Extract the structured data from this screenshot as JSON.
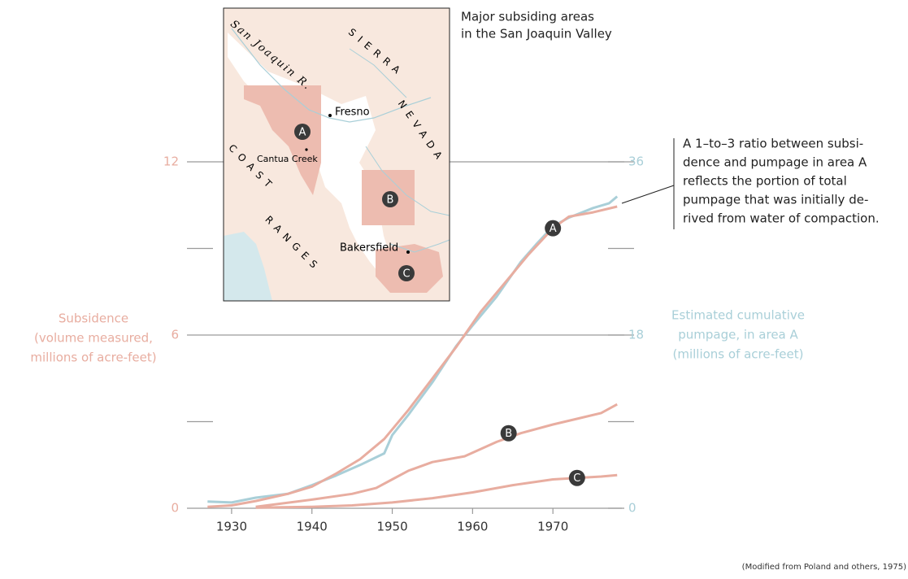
{
  "chart_data": {
    "type": "line",
    "ylim": [
      0,
      12
    ],
    "yticks": [
      0,
      6,
      12
    ],
    "minor_yticks": [
      3,
      9
    ],
    "y2lim": [
      0,
      36
    ],
    "y2ticks": [
      0,
      18,
      36
    ],
    "minor_y2ticks": [
      9,
      27
    ],
    "xlim": [
      1925,
      1980
    ],
    "xticks": [
      1930,
      1940,
      1950,
      1960,
      1970
    ],
    "y_label_lines": [
      "Subsidence",
      "(volume measured,",
      "millions of acre-feet)"
    ],
    "y2_label_lines": [
      "Estimated cumulative",
      "pumpage, in area A",
      "(millions of acre-feet)"
    ],
    "series": [
      {
        "axis": "y2",
        "color": "#a9cfd8",
        "x": [
          1927,
          1930,
          1933,
          1937,
          1940,
          1943,
          1946,
          1949,
          1950,
          1952,
          1955,
          1958,
          1960,
          1963,
          1966,
          1968,
          1970,
          1972,
          1975,
          1977,
          1978
        ],
        "values": [
          0.7,
          0.6,
          1.1,
          1.5,
          2.4,
          3.4,
          4.5,
          5.7,
          7.6,
          9.7,
          13.1,
          16.9,
          19,
          22,
          25.6,
          27.5,
          29.3,
          30.2,
          31.2,
          31.7,
          32.4
        ]
      },
      {
        "name": "A",
        "color": "#e8ada0",
        "x": [
          1927,
          1930,
          1933,
          1937,
          1940,
          1943,
          1946,
          1949,
          1952,
          1955,
          1958,
          1961,
          1964,
          1967,
          1970,
          1972,
          1975,
          1978
        ],
        "values": [
          0.05,
          0.1,
          0.25,
          0.5,
          0.75,
          1.2,
          1.7,
          2.4,
          3.4,
          4.5,
          5.6,
          6.8,
          7.8,
          8.8,
          9.7,
          10.1,
          10.25,
          10.45
        ]
      },
      {
        "name": "B",
        "color": "#e8ada0",
        "x": [
          1933,
          1940,
          1945,
          1948,
          1950,
          1952,
          1955,
          1959,
          1963,
          1966,
          1970,
          1973,
          1976,
          1978
        ],
        "values": [
          0.05,
          0.3,
          0.5,
          0.7,
          1.0,
          1.3,
          1.6,
          1.8,
          2.3,
          2.6,
          2.9,
          3.1,
          3.3,
          3.6
        ]
      },
      {
        "name": "C",
        "color": "#e8ada0",
        "x": [
          1933,
          1940,
          1945,
          1950,
          1955,
          1960,
          1965,
          1970,
          1973,
          1976,
          1978
        ],
        "values": [
          0.02,
          0.05,
          0.1,
          0.2,
          0.35,
          0.55,
          0.8,
          1.0,
          1.05,
          1.1,
          1.15
        ]
      }
    ],
    "annotation_lines": [
      "A 1–to–3 ratio between subsi-",
      "dence and pumpage in area A",
      "reflects the portion of total",
      "pumpage that was initially de-",
      "rived from water of compaction."
    ],
    "source": "(Modified from Poland and others, 1975)"
  },
  "map": {
    "title_lines": [
      "Major subsiding areas",
      "in the San Joaquin Valley"
    ],
    "river": "San Joaquin R.",
    "sierra": "SIERRA",
    "nevada": "NEVADA",
    "coast": "COAST",
    "ranges": "RANGES",
    "towns": [
      "Fresno",
      "Cantua Creek",
      "Bakersfield"
    ],
    "areas": [
      "A",
      "B",
      "C"
    ]
  }
}
